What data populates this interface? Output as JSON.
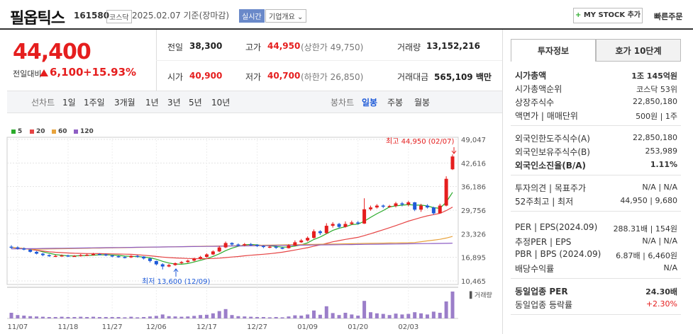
{
  "header": {
    "name": "필옵틱스",
    "code": "161580",
    "market": "코스닥",
    "date_info": "2025.02.07  기준(장마감)",
    "realtime_label": "실시간",
    "overview_label": "기업개요",
    "mystock_label": "MY STOCK 추가",
    "quick_order_label": "빠른주문"
  },
  "price": {
    "current": "44,400",
    "prev_label": "전일대비",
    "change": "6,100",
    "change_pct": "+15.93%"
  },
  "quote": {
    "prev_close_label": "전일",
    "prev_close": "38,300",
    "high_label": "고가",
    "high": "44,950",
    "high_limit": "(상한가 49,750)",
    "volume_label": "거래량",
    "volume": "13,152,216",
    "open_label": "시가",
    "open": "40,900",
    "low_label": "저가",
    "low": "40,700",
    "low_limit": "(하한가 26,850)",
    "amount_label": "거래대금",
    "amount": "565,109",
    "amount_unit": "백만"
  },
  "period_bar": {
    "line_label": "선차트",
    "periods": [
      "1일",
      "1주일",
      "3개월",
      "1년",
      "3년",
      "5년",
      "10년"
    ],
    "candle_label": "봉차트",
    "candles": [
      "일봉",
      "주봉",
      "월봉"
    ],
    "selected_candle": "일봉"
  },
  "chart_data": {
    "type": "candlestick",
    "legend": [
      {
        "name": "5",
        "color": "#2bab2b"
      },
      {
        "name": "20",
        "color": "#e64545"
      },
      {
        "name": "60",
        "color": "#e8a33d"
      },
      {
        "name": "120",
        "color": "#8e5ec4"
      }
    ],
    "y_ticks": [
      "49,047",
      "42,616",
      "36,186",
      "29,756",
      "23,326",
      "16,895",
      "10,465"
    ],
    "ylim": [
      10465,
      49047
    ],
    "x_ticks": [
      "11/07",
      "11/18",
      "11/27",
      "12/06",
      "12/17",
      "12/27",
      "01/09",
      "01/20",
      "02/03"
    ],
    "high_annotation": "최고 44,950 (02/07)",
    "low_annotation": "최저 13,600 (12/09)",
    "volume_label": "거래량",
    "candles": [
      [
        19800,
        19600,
        20200,
        19200
      ],
      [
        19600,
        19300,
        19900,
        19000
      ],
      [
        19300,
        19000,
        19600,
        18800
      ],
      [
        19000,
        18400,
        19100,
        18200
      ],
      [
        18400,
        17900,
        18600,
        17700
      ],
      [
        17900,
        17500,
        18100,
        17200
      ],
      [
        17500,
        17200,
        17700,
        17000
      ],
      [
        17200,
        17300,
        17600,
        17000
      ],
      [
        17300,
        17400,
        17700,
        17100
      ],
      [
        17400,
        17200,
        17600,
        17000
      ],
      [
        17200,
        17300,
        17500,
        17000
      ],
      [
        17300,
        17500,
        17800,
        17100
      ],
      [
        17500,
        17600,
        17900,
        17300
      ],
      [
        17600,
        17800,
        18100,
        17400
      ],
      [
        17800,
        17700,
        18000,
        17500
      ],
      [
        17700,
        17400,
        17900,
        17200
      ],
      [
        17400,
        17200,
        17600,
        16900
      ],
      [
        17200,
        17000,
        17400,
        16800
      ],
      [
        17000,
        16900,
        17200,
        16600
      ],
      [
        16900,
        17300,
        17500,
        16700
      ],
      [
        17300,
        17100,
        17500,
        16800
      ],
      [
        17100,
        16600,
        17200,
        16300
      ],
      [
        16600,
        15900,
        16700,
        15500
      ],
      [
        15900,
        15000,
        16000,
        14700
      ],
      [
        15000,
        14400,
        15300,
        13600
      ],
      [
        14400,
        14800,
        15100,
        14200
      ],
      [
        14800,
        15300,
        15500,
        14600
      ],
      [
        15300,
        15600,
        15900,
        15100
      ],
      [
        15600,
        16000,
        16300,
        15400
      ],
      [
        16000,
        16500,
        16800,
        15800
      ],
      [
        16500,
        17000,
        17300,
        16300
      ],
      [
        17000,
        17700,
        18000,
        16800
      ],
      [
        17700,
        18500,
        18800,
        17500
      ],
      [
        18500,
        19600,
        20000,
        18300
      ],
      [
        19600,
        20800,
        21200,
        19400
      ],
      [
        20800,
        20400,
        21000,
        20000
      ],
      [
        20400,
        20200,
        20700,
        19900
      ],
      [
        20200,
        20500,
        20800,
        19900
      ],
      [
        20500,
        20300,
        20800,
        20000
      ],
      [
        20300,
        20000,
        20500,
        19700
      ],
      [
        20000,
        19700,
        20200,
        19400
      ],
      [
        19700,
        19800,
        20100,
        19400
      ],
      [
        19800,
        19500,
        20000,
        19200
      ],
      [
        19500,
        19400,
        19800,
        19100
      ],
      [
        19400,
        20100,
        20500,
        19300
      ],
      [
        20100,
        21000,
        21500,
        20000
      ],
      [
        21000,
        21500,
        21900,
        20800
      ],
      [
        21500,
        22200,
        22600,
        21200
      ],
      [
        22200,
        24000,
        24500,
        22000
      ],
      [
        24000,
        23500,
        24300,
        23000
      ],
      [
        23500,
        25500,
        26200,
        23300
      ],
      [
        25500,
        26000,
        26500,
        25000
      ],
      [
        26000,
        25200,
        26300,
        24800
      ],
      [
        25200,
        26000,
        26700,
        25000
      ],
      [
        26000,
        26400,
        26900,
        25700
      ],
      [
        26400,
        26100,
        26800,
        25800
      ],
      [
        26100,
        30000,
        33000,
        26000
      ],
      [
        30000,
        30500,
        31000,
        29600
      ],
      [
        30500,
        31000,
        31400,
        30200
      ],
      [
        31000,
        30700,
        31300,
        30300
      ],
      [
        30700,
        30900,
        31200,
        30400
      ],
      [
        30900,
        31600,
        32000,
        30500
      ],
      [
        31600,
        31300,
        32000,
        30800
      ],
      [
        31300,
        31900,
        32300,
        30800
      ],
      [
        31900,
        29900,
        32000,
        29500
      ],
      [
        29900,
        31000,
        31500,
        29300
      ],
      [
        31000,
        30500,
        31400,
        30200
      ],
      [
        30500,
        28900,
        30700,
        28500
      ],
      [
        28900,
        31000,
        31500,
        28800
      ],
      [
        31000,
        38300,
        39000,
        30800
      ],
      [
        40900,
        44400,
        44950,
        40700
      ]
    ],
    "volumes": [
      0.2,
      0.12,
      0.1,
      0.08,
      0.07,
      0.06,
      0.05,
      0.05,
      0.06,
      0.05,
      0.05,
      0.06,
      0.05,
      0.06,
      0.05,
      0.05,
      0.05,
      0.05,
      0.04,
      0.06,
      0.04,
      0.05,
      0.07,
      0.09,
      0.14,
      0.08,
      0.07,
      0.06,
      0.07,
      0.09,
      0.12,
      0.13,
      0.18,
      0.26,
      0.33,
      0.12,
      0.08,
      0.07,
      0.06,
      0.05,
      0.05,
      0.04,
      0.05,
      0.04,
      0.07,
      0.11,
      0.1,
      0.14,
      0.28,
      0.13,
      0.43,
      0.19,
      0.12,
      0.2,
      0.14,
      0.1,
      0.62,
      0.22,
      0.18,
      0.16,
      0.12,
      0.17,
      0.14,
      0.16,
      0.22,
      0.18,
      0.14,
      0.24,
      0.2,
      0.6,
      0.95
    ]
  },
  "right_panel": {
    "tabs": [
      "투자정보",
      "호가 10단계"
    ],
    "rows1": [
      {
        "label": "시가총액",
        "value": "1조 145억원",
        "bold": true
      },
      {
        "label": "시가총액순위",
        "value": "코스닥 53위"
      },
      {
        "label": "상장주식수",
        "value": "22,850,180"
      },
      {
        "label": "액면가 | 매매단위",
        "value": "500원 | 1주"
      }
    ],
    "rows2": [
      {
        "label": "외국인한도주식수(A)",
        "value": "22,850,180"
      },
      {
        "label": "외국인보유주식수(B)",
        "value": "253,989"
      },
      {
        "label": "외국인소진율(B/A)",
        "value": "1.11%",
        "bold": true
      }
    ],
    "rows3": [
      {
        "label": "투자의견 | 목표주가",
        "value": "N/A | N/A"
      },
      {
        "label": "52주최고 | 최저",
        "value": "44,950 | 9,680"
      }
    ],
    "rows4": [
      {
        "label": "PER | EPS(2024.09)",
        "value": "288.31배 | 154원"
      },
      {
        "label": "추정PER | EPS",
        "value": "N/A | N/A"
      },
      {
        "label": "PBR | BPS (2024.09)",
        "value": "6.87배 | 6,460원"
      },
      {
        "label": "배당수익률",
        "value": "N/A"
      }
    ],
    "rows5": [
      {
        "label": "동일업종 PER",
        "value": "24.30배",
        "bold": true
      },
      {
        "label": "동일업종 등락률",
        "value": "+2.30%",
        "red": true
      }
    ]
  }
}
